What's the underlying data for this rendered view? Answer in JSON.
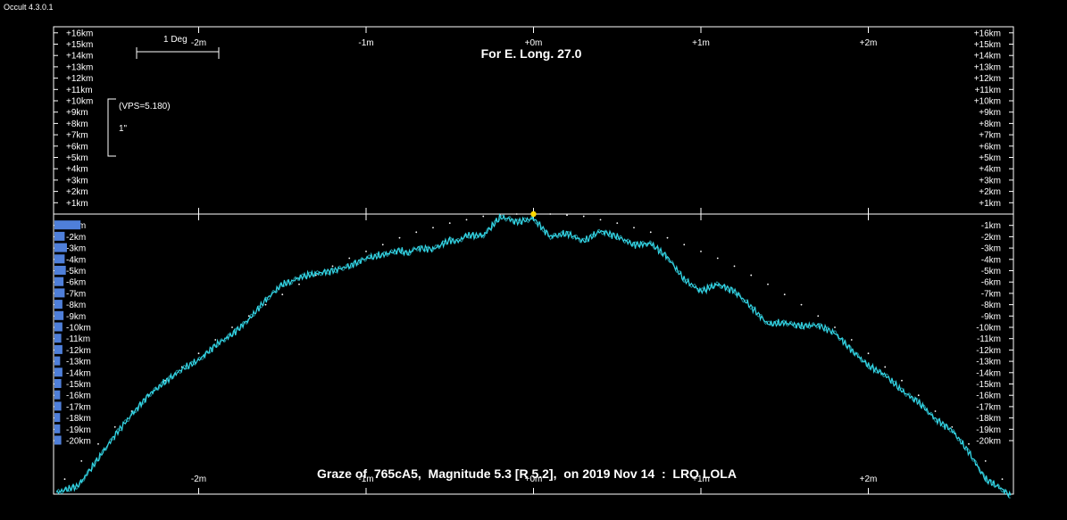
{
  "app": {
    "title": "Occult 4.3.0.1"
  },
  "chart_data": {
    "type": "line",
    "title": "For E. Long. 27.0",
    "caption": "Graze of  765cA5,  Magnitude 5.3 [R 5.2],  on 2019 Nov 14  :  LRO LOLA",
    "scale_bar_label": "1 Deg",
    "vps_label": "(VPS=5.180)",
    "arcsec_label": "1\"",
    "x_unit": "minutes of time",
    "y_unit": "km",
    "xlim": [
      -2.85,
      2.85
    ],
    "ylim": [
      -24.8,
      16.6
    ],
    "x_ticks": [
      -2,
      -1,
      0,
      1,
      2
    ],
    "x_tick_labels_top": [
      "-2m",
      "-1m",
      "+0m",
      "+1m",
      "+2m"
    ],
    "x_tick_labels_bottom": [
      "-2m",
      "-1m",
      "+0m",
      "+1m",
      "+2m"
    ],
    "y_ticks_pos": [
      16,
      15,
      14,
      13,
      12,
      11,
      10,
      9,
      8,
      7,
      6,
      5,
      4,
      3,
      2,
      1
    ],
    "y_tick_labels_pos": [
      "+16km",
      "+15km",
      "+14km",
      "+13km",
      "+12km",
      "+11km",
      "+10km",
      "+9km",
      "+8km",
      "+7km",
      "+6km",
      "+5km",
      "+4km",
      "+3km",
      "+2km",
      "+1km"
    ],
    "y_ticks_neg": [
      -1,
      -2,
      -3,
      -4,
      -5,
      -6,
      -7,
      -8,
      -9,
      -10,
      -11,
      -12,
      -13,
      -14,
      -15,
      -16,
      -17,
      -18,
      -19,
      -20
    ],
    "y_tick_labels_neg": [
      "-1km",
      "-2km",
      "-3km",
      "-4km",
      "-5km",
      "-6km",
      "-7km",
      "-8km",
      "-9km",
      "-10km",
      "-11km",
      "-12km",
      "-13km",
      "-14km",
      "-15km",
      "-16km",
      "-17km",
      "-18km",
      "-19km",
      "-20km"
    ],
    "star_point": {
      "x": 0.0,
      "y": 0.0
    },
    "series": [
      {
        "kind": "limb_profile",
        "color": "#33d6e6",
        "x": [
          -2.85,
          -2.72,
          -2.6,
          -2.5,
          -2.4,
          -2.3,
          -2.2,
          -2.1,
          -2.0,
          -1.9,
          -1.8,
          -1.7,
          -1.6,
          -1.5,
          -1.45,
          -1.4,
          -1.35,
          -1.2,
          -1.1,
          -1.0,
          -0.9,
          -0.8,
          -0.75,
          -0.7,
          -0.6,
          -0.5,
          -0.45,
          -0.4,
          -0.3,
          -0.2,
          -0.15,
          -0.1,
          0.0,
          0.1,
          0.2,
          0.3,
          0.4,
          0.5,
          0.6,
          0.7,
          0.8,
          0.9,
          1.0,
          1.1,
          1.2,
          1.3,
          1.4,
          1.5,
          1.6,
          1.7,
          1.8,
          1.9,
          2.0,
          2.1,
          2.2,
          2.3,
          2.4,
          2.5,
          2.6,
          2.7,
          2.8,
          2.85
        ],
        "y": [
          -24.6,
          -24.0,
          -21.6,
          -19.5,
          -17.7,
          -16.0,
          -14.8,
          -13.7,
          -12.9,
          -11.6,
          -10.6,
          -9.3,
          -7.6,
          -6.2,
          -6.0,
          -5.6,
          -5.4,
          -5.0,
          -4.6,
          -3.9,
          -3.6,
          -3.2,
          -3.5,
          -3.0,
          -3.1,
          -2.3,
          -2.4,
          -1.9,
          -1.9,
          -0.3,
          -0.4,
          -0.7,
          -0.4,
          -2.0,
          -1.7,
          -2.4,
          -1.5,
          -2.0,
          -2.7,
          -2.6,
          -3.8,
          -5.8,
          -6.8,
          -6.2,
          -6.8,
          -8.2,
          -9.7,
          -9.6,
          -9.9,
          -9.8,
          -10.5,
          -12.0,
          -13.4,
          -14.2,
          -15.6,
          -16.6,
          -18.1,
          -19.1,
          -21.0,
          -23.4,
          -24.3,
          -24.9
        ]
      },
      {
        "kind": "mean_limb",
        "color": "#ffffff",
        "x": [
          -2.8,
          -2.7,
          -2.6,
          -2.5,
          -2.4,
          -2.3,
          -2.2,
          -2.1,
          -2.0,
          -1.9,
          -1.8,
          -1.7,
          -1.6,
          -1.5,
          -1.4,
          -1.3,
          -1.2,
          -1.1,
          -1.0,
          -0.9,
          -0.8,
          -0.7,
          -0.6,
          -0.5,
          -0.4,
          -0.3,
          -0.2,
          -0.1,
          0.1,
          0.2,
          0.3,
          0.4,
          0.5,
          0.6,
          0.7,
          0.8,
          0.9,
          1.0,
          1.1,
          1.2,
          1.3,
          1.4,
          1.5,
          1.6,
          1.7,
          1.8,
          1.9,
          2.0,
          2.1,
          2.2,
          2.3,
          2.4,
          2.5,
          2.6,
          2.7,
          2.8
        ],
        "y": [
          -23.4,
          -21.8,
          -20.3,
          -18.8,
          -17.4,
          -16.0,
          -14.7,
          -13.5,
          -12.3,
          -11.1,
          -10.0,
          -9.0,
          -8.0,
          -7.1,
          -6.2,
          -5.4,
          -4.6,
          -3.9,
          -3.3,
          -2.7,
          -2.1,
          -1.6,
          -1.2,
          -0.8,
          -0.5,
          -0.2,
          -0.1,
          0.0,
          0.0,
          -0.1,
          -0.2,
          -0.5,
          -0.8,
          -1.2,
          -1.6,
          -2.1,
          -2.7,
          -3.3,
          -3.9,
          -4.6,
          -5.4,
          -6.2,
          -7.1,
          -8.0,
          -9.0,
          -10.0,
          -11.1,
          -12.3,
          -13.5,
          -14.7,
          -16.0,
          -17.4,
          -18.8,
          -20.3,
          -21.8,
          -23.4
        ]
      }
    ],
    "observer_bars": [
      2.3,
      0.9,
      1.1,
      0.9,
      1.0,
      0.8,
      0.9,
      0.7,
      0.8,
      0.7,
      0.6,
      0.7,
      0.5,
      0.7,
      0.6,
      0.5,
      0.6,
      0.5,
      0.5,
      0.6
    ],
    "observer_bar_color": "#4f7fd9",
    "grid": false
  }
}
